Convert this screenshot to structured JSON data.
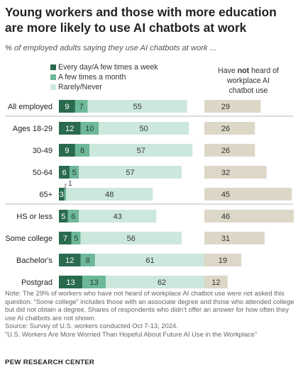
{
  "title": "Young workers and those with more education are more likely to use AI chatbots at work",
  "subtitle": "% of employed adults saying they use AI chatbots at work ...",
  "right_header": {
    "line1": "Have not heard of",
    "line2": "workplace AI",
    "line3": "chatbot use",
    "pre": "Have ",
    "bold": "not",
    "post": " heard of"
  },
  "colors": {
    "everyday": "#2a6a4e",
    "few_month": "#6db899",
    "rarely": "#cce8dd",
    "not_heard": "#dcd7c7",
    "divider": "#b9b9b9"
  },
  "notes": [
    "Note: The 29% of workers who have not heard of workplace AI chatbot use were not asked this question. “Some college” includes those with an associate degree and those who attended college but did not obtain a degree. Shares of respondents who didn’t offer an answer for how often they use AI chatbots are not shown.",
    "Source: Survey of U.S. workers conducted Oct 7-13, 2024.",
    "“U.S. Workers Are More Worried Than Hopeful About Future AI Use in the Workplace”"
  ],
  "brand": "PEW RESEARCH CENTER",
  "chart_data": {
    "type": "bar",
    "stacked": true,
    "orientation": "horizontal",
    "categories": [
      "All employed",
      "Ages 18-29",
      "30-49",
      "50-64",
      "65+",
      "HS or less",
      "Some college",
      "Bachelor's",
      "Postgrad"
    ],
    "groups": [
      [
        0
      ],
      [
        1,
        2,
        3,
        4
      ],
      [
        5,
        6,
        7,
        8
      ]
    ],
    "series": [
      {
        "name": "Every day/A few times a week",
        "values": [
          9,
          12,
          9,
          6,
          3,
          5,
          7,
          12,
          13
        ]
      },
      {
        "name": "A few times a month",
        "values": [
          7,
          10,
          8,
          5,
          1,
          6,
          5,
          8,
          13
        ]
      },
      {
        "name": "Rarely/Never",
        "values": [
          55,
          50,
          57,
          57,
          48,
          43,
          56,
          61,
          62
        ]
      }
    ],
    "right_panel": {
      "name": "Have not heard of workplace AI chatbot use",
      "values": [
        29,
        26,
        26,
        32,
        45,
        46,
        31,
        19,
        12
      ]
    },
    "callouts": [
      {
        "category": "65+",
        "series": "A few times a month",
        "value": 1,
        "placement": "above"
      }
    ]
  }
}
